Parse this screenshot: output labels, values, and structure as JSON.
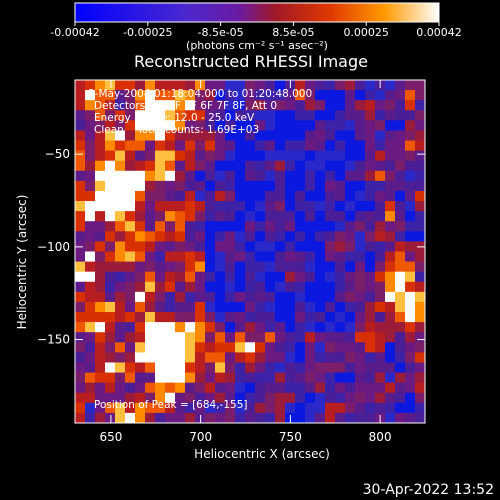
{
  "chart_data": {
    "type": "heatmap",
    "title": "Reconstructed RHESSI Image",
    "xlabel": "Heliocentric X (arcsec)",
    "ylabel": "Heliocentric Y (arcsec)",
    "xlim": [
      630,
      825
    ],
    "ylim": [
      -195,
      -10
    ],
    "x_ticks": [
      650,
      700,
      750,
      800
    ],
    "y_ticks": [
      -50,
      -100,
      -150
    ],
    "colorbar": {
      "ticks": [
        "-0.00042",
        "-0.00025",
        "-8.5e-05",
        "8.5e-05",
        "0.00025",
        "0.00042"
      ],
      "unit": "(photons cm⁻² s⁻¹ asec⁻²)",
      "colors": [
        "#0000ff",
        "#5030d0",
        "#7018a0",
        "#b01820",
        "#e04000",
        "#ff9a00",
        "#ffffff"
      ]
    },
    "annotations": [
      "3-May-2004 01:18:04.000 to 01:20:48.000",
      "Detectors: 3F 4F 5F 6F 7F 8F, Att 0",
      "Energy Range: 12.0 - 25.0 keV",
      "Clean    Total counts: 1.69E+03"
    ],
    "peak_label": "Position of Peak = [684,-155]",
    "peak_position": [
      684,
      -155
    ],
    "bright_sources": [
      {
        "x": 684,
        "y": -155,
        "level": 0.00042
      },
      {
        "x": 652,
        "y": -70,
        "level": 0.00036
      },
      {
        "x": 680,
        "y": -30,
        "level": 0.00025
      },
      {
        "x": 812,
        "y": -130,
        "level": 0.0003
      },
      {
        "x": 720,
        "y": -150,
        "level": 0.0002
      }
    ]
  },
  "timestamp": "30-Apr-2022 13:52"
}
